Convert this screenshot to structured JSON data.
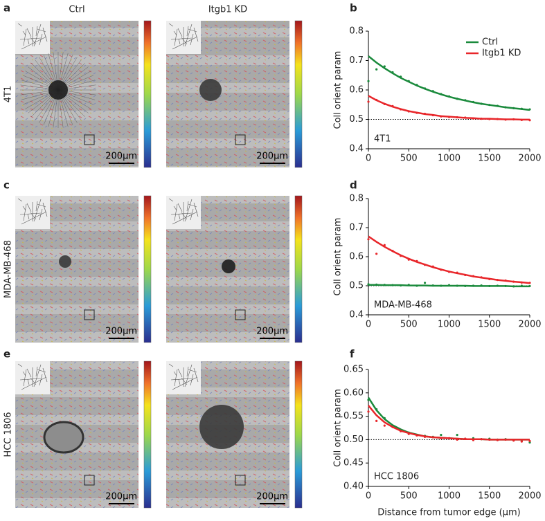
{
  "panel_labels": [
    "a",
    "b",
    "c",
    "d",
    "e",
    "f"
  ],
  "column_titles": [
    "Ctrl",
    "Itgb1 KD"
  ],
  "rows": [
    {
      "label": "4T1",
      "scale_bars": [
        "200µm",
        "200µm"
      ]
    },
    {
      "label": "MDA-MB-468",
      "scale_bars": [
        "200µm",
        "200µm"
      ]
    },
    {
      "label": "HCC 1806",
      "scale_bars": [
        "200µm",
        "200µm"
      ]
    }
  ],
  "chart_data": [
    {
      "type": "line",
      "y_label": "Coll orient param",
      "annotation": "4T1",
      "legend": true,
      "reference_line": 0.5,
      "x": [
        0,
        100,
        200,
        300,
        400,
        500,
        600,
        700,
        800,
        900,
        1000,
        1100,
        1200,
        1300,
        1400,
        1500,
        1600,
        1700,
        1800,
        1900,
        2000
      ],
      "xlim": [
        0,
        2000
      ],
      "xticks": [
        0,
        500,
        1000,
        1500,
        2000
      ],
      "ylim": [
        0.4,
        0.8
      ],
      "yticks": [
        0.4,
        0.5,
        0.6,
        0.7,
        0.8
      ],
      "series": [
        {
          "name": "Ctrl",
          "color": "#1a8a3c",
          "values": [
            0.63,
            0.67,
            0.68,
            0.66,
            0.645,
            0.63,
            0.617,
            0.605,
            0.596,
            0.586,
            0.578,
            0.57,
            0.565,
            0.559,
            0.553,
            0.549,
            0.546,
            0.541,
            0.538,
            0.536,
            0.534
          ],
          "fit": [
            0.715,
            0.693,
            0.674,
            0.657,
            0.641,
            0.628,
            0.615,
            0.604,
            0.594,
            0.585,
            0.577,
            0.57,
            0.564,
            0.558,
            0.553,
            0.549,
            0.545,
            0.541,
            0.538,
            0.535,
            0.532
          ]
        },
        {
          "name": "Itgb1 KD",
          "color": "#e8262a",
          "values": [
            0.56,
            0.566,
            0.552,
            0.545,
            0.534,
            0.527,
            0.522,
            0.519,
            0.514,
            0.51,
            0.508,
            0.507,
            0.506,
            0.503,
            0.502,
            0.501,
            0.501,
            0.499,
            0.5,
            0.498,
            0.497
          ],
          "fit": [
            0.58,
            0.565,
            0.553,
            0.543,
            0.535,
            0.528,
            0.523,
            0.518,
            0.515,
            0.511,
            0.509,
            0.507,
            0.505,
            0.504,
            0.502,
            0.502,
            0.501,
            0.5,
            0.5,
            0.499,
            0.499
          ]
        }
      ]
    },
    {
      "type": "line",
      "y_label": "Coll orient param",
      "annotation": "MDA-MB-468",
      "legend": false,
      "reference_line": 0.5,
      "x": [
        0,
        100,
        200,
        300,
        400,
        500,
        600,
        700,
        800,
        900,
        1000,
        1100,
        1200,
        1300,
        1400,
        1500,
        1600,
        1700,
        1800,
        1900,
        2000
      ],
      "xlim": [
        0,
        2000
      ],
      "xticks": [
        0,
        500,
        1000,
        1500,
        2000
      ],
      "ylim": [
        0.4,
        0.8
      ],
      "yticks": [
        0.4,
        0.5,
        0.6,
        0.7,
        0.8
      ],
      "series": [
        {
          "name": "Ctrl",
          "color": "#1a8a3c",
          "values": [
            0.505,
            0.504,
            0.503,
            0.502,
            0.501,
            0.503,
            0.5,
            0.51,
            0.501,
            0.5,
            0.502,
            0.5,
            0.499,
            0.5,
            0.501,
            0.499,
            0.5,
            0.499,
            0.498,
            0.5,
            0.499
          ],
          "fit": [
            0.503,
            0.503,
            0.502,
            0.502,
            0.502,
            0.501,
            0.501,
            0.501,
            0.5,
            0.5,
            0.5,
            0.5,
            0.5,
            0.499,
            0.499,
            0.499,
            0.499,
            0.499,
            0.498,
            0.498,
            0.498
          ]
        },
        {
          "name": "Itgb1 KD",
          "color": "#e8262a",
          "values": [
            0.66,
            0.61,
            0.64,
            0.62,
            0.603,
            0.59,
            0.585,
            0.572,
            0.566,
            0.555,
            0.548,
            0.545,
            0.537,
            0.533,
            0.529,
            0.523,
            0.52,
            0.518,
            0.514,
            0.511,
            0.51
          ],
          "fit": [
            0.67,
            0.651,
            0.634,
            0.619,
            0.605,
            0.593,
            0.582,
            0.573,
            0.564,
            0.556,
            0.549,
            0.543,
            0.538,
            0.532,
            0.528,
            0.524,
            0.52,
            0.517,
            0.514,
            0.512,
            0.509
          ]
        }
      ]
    },
    {
      "type": "line",
      "y_label": "Coll orient param",
      "annotation": "HCC  1806",
      "legend": false,
      "reference_line": 0.5,
      "x_label": "Distance from tumor edge (µm)",
      "x": [
        0,
        100,
        200,
        300,
        400,
        500,
        600,
        700,
        800,
        900,
        1000,
        1100,
        1200,
        1300,
        1400,
        1500,
        1600,
        1700,
        1800,
        1900,
        2000
      ],
      "xlim": [
        0,
        2000
      ],
      "xticks": [
        0,
        500,
        1000,
        1500,
        2000
      ],
      "ylim": [
        0.4,
        0.65
      ],
      "yticks": [
        {
          "value": 0.4,
          "label": "0.40"
        },
        {
          "value": 0.45,
          "label": "0.45"
        },
        {
          "value": 0.5,
          "label": "0.50"
        },
        {
          "value": 0.55,
          "label": "0.55"
        },
        {
          "value": 0.6,
          "label": "0.60"
        },
        {
          "value": 0.65,
          "label": "0.65"
        }
      ],
      "series": [
        {
          "name": "Ctrl",
          "color": "#1a8a3c",
          "values": [
            0.585,
            0.565,
            0.546,
            0.53,
            0.521,
            0.515,
            0.51,
            0.508,
            0.506,
            0.51,
            0.503,
            0.51,
            0.502,
            0.503,
            0.501,
            0.502,
            0.5,
            0.501,
            0.499,
            0.497,
            0.494
          ],
          "fit": [
            0.59,
            0.563,
            0.544,
            0.531,
            0.522,
            0.515,
            0.511,
            0.507,
            0.505,
            0.504,
            0.503,
            0.502,
            0.501,
            0.501,
            0.501,
            0.5,
            0.5,
            0.5,
            0.5,
            0.5,
            0.5
          ]
        },
        {
          "name": "Itgb1 KD",
          "color": "#e8262a",
          "values": [
            0.56,
            0.54,
            0.53,
            0.527,
            0.518,
            0.512,
            0.509,
            0.506,
            0.505,
            0.503,
            0.503,
            0.5,
            0.502,
            0.499,
            0.501,
            0.5,
            0.499,
            0.5,
            0.498,
            0.496,
            0.497
          ],
          "fit": [
            0.573,
            0.552,
            0.537,
            0.527,
            0.519,
            0.514,
            0.51,
            0.507,
            0.505,
            0.504,
            0.503,
            0.502,
            0.501,
            0.501,
            0.501,
            0.5,
            0.5,
            0.5,
            0.5,
            0.5,
            0.5
          ]
        }
      ]
    }
  ]
}
